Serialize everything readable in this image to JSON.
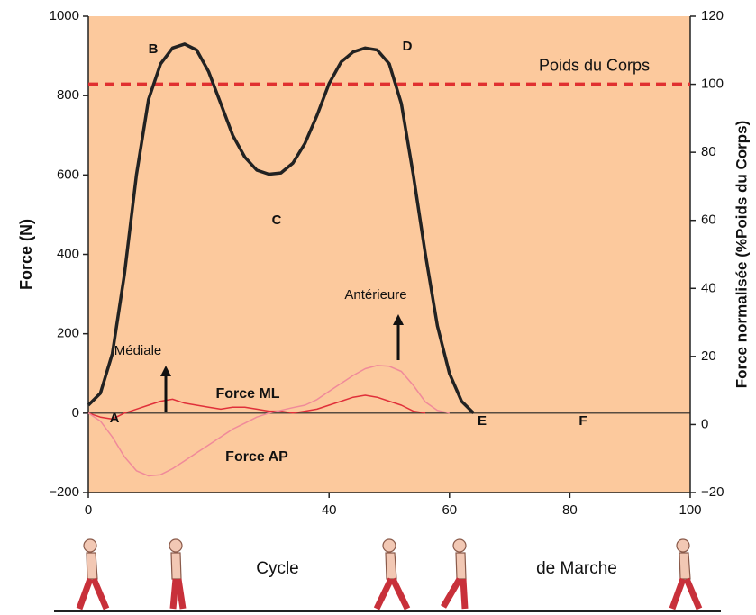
{
  "chart_data": {
    "type": "line",
    "ylabel": "Force (N)",
    "y2label": "Force normalisée (%Poids du Corps)",
    "xlim": [
      0,
      100
    ],
    "xticks": [
      0,
      40,
      60,
      80,
      100
    ],
    "ylim": [
      -200,
      1000
    ],
    "yticks": [
      {
        "value": -200,
        "label": "−200"
      },
      0,
      200,
      400,
      600,
      800,
      1000
    ],
    "y2lim": [
      -20,
      120
    ],
    "y2ticks": [
      {
        "value": -20,
        "label": "−20"
      },
      0,
      20,
      40,
      60,
      80,
      100,
      120
    ],
    "background": "#fcc99d",
    "reference_line": {
      "label": "Poids du Corps",
      "value": 100,
      "axis": "y2",
      "color": "#e03030"
    },
    "series": [
      {
        "color": "#222222",
        "width": 3.5,
        "x": [
          0,
          2,
          4,
          6,
          8,
          10,
          12,
          14,
          16,
          18,
          20,
          22,
          24,
          26,
          28,
          30,
          32,
          34,
          36,
          38,
          40,
          42,
          44,
          46,
          48,
          50,
          52,
          54,
          56,
          58,
          60,
          62,
          64
        ],
        "values": [
          20,
          50,
          150,
          350,
          600,
          790,
          880,
          920,
          930,
          915,
          860,
          780,
          700,
          645,
          612,
          602,
          605,
          630,
          680,
          750,
          830,
          885,
          910,
          920,
          915,
          880,
          780,
          600,
          400,
          220,
          100,
          30,
          0
        ]
      },
      {
        "name": "Force ML",
        "color": "#e0303a",
        "width": 1.5,
        "x": [
          0,
          2,
          4,
          6,
          8,
          10,
          12,
          14,
          16,
          18,
          20,
          22,
          24,
          26,
          28,
          30,
          32,
          34,
          36,
          38,
          40,
          42,
          44,
          46,
          48,
          50,
          52,
          54,
          56
        ],
        "values": [
          0,
          -10,
          -15,
          0,
          10,
          20,
          30,
          35,
          25,
          20,
          15,
          10,
          15,
          15,
          10,
          5,
          5,
          0,
          5,
          10,
          20,
          30,
          40,
          45,
          40,
          30,
          20,
          5,
          0
        ]
      },
      {
        "name": "Force AP",
        "color": "#f08a9a",
        "width": 1.5,
        "x": [
          0,
          2,
          4,
          6,
          8,
          10,
          12,
          14,
          16,
          18,
          20,
          22,
          24,
          26,
          28,
          30,
          32,
          34,
          36,
          38,
          40,
          42,
          44,
          46,
          48,
          50,
          52,
          54,
          56,
          58,
          60
        ],
        "values": [
          0,
          -20,
          -60,
          -110,
          -145,
          -158,
          -155,
          -140,
          -120,
          -100,
          -80,
          -60,
          -40,
          -25,
          -10,
          0,
          7,
          14,
          20,
          34,
          55,
          75,
          95,
          112,
          120,
          118,
          105,
          70,
          28,
          7,
          0
        ]
      }
    ],
    "annotations": [
      "A",
      "B",
      "C",
      "D",
      "E",
      "F",
      "Médiale",
      "Antérieure",
      "Cycle",
      "de Marche"
    ]
  }
}
